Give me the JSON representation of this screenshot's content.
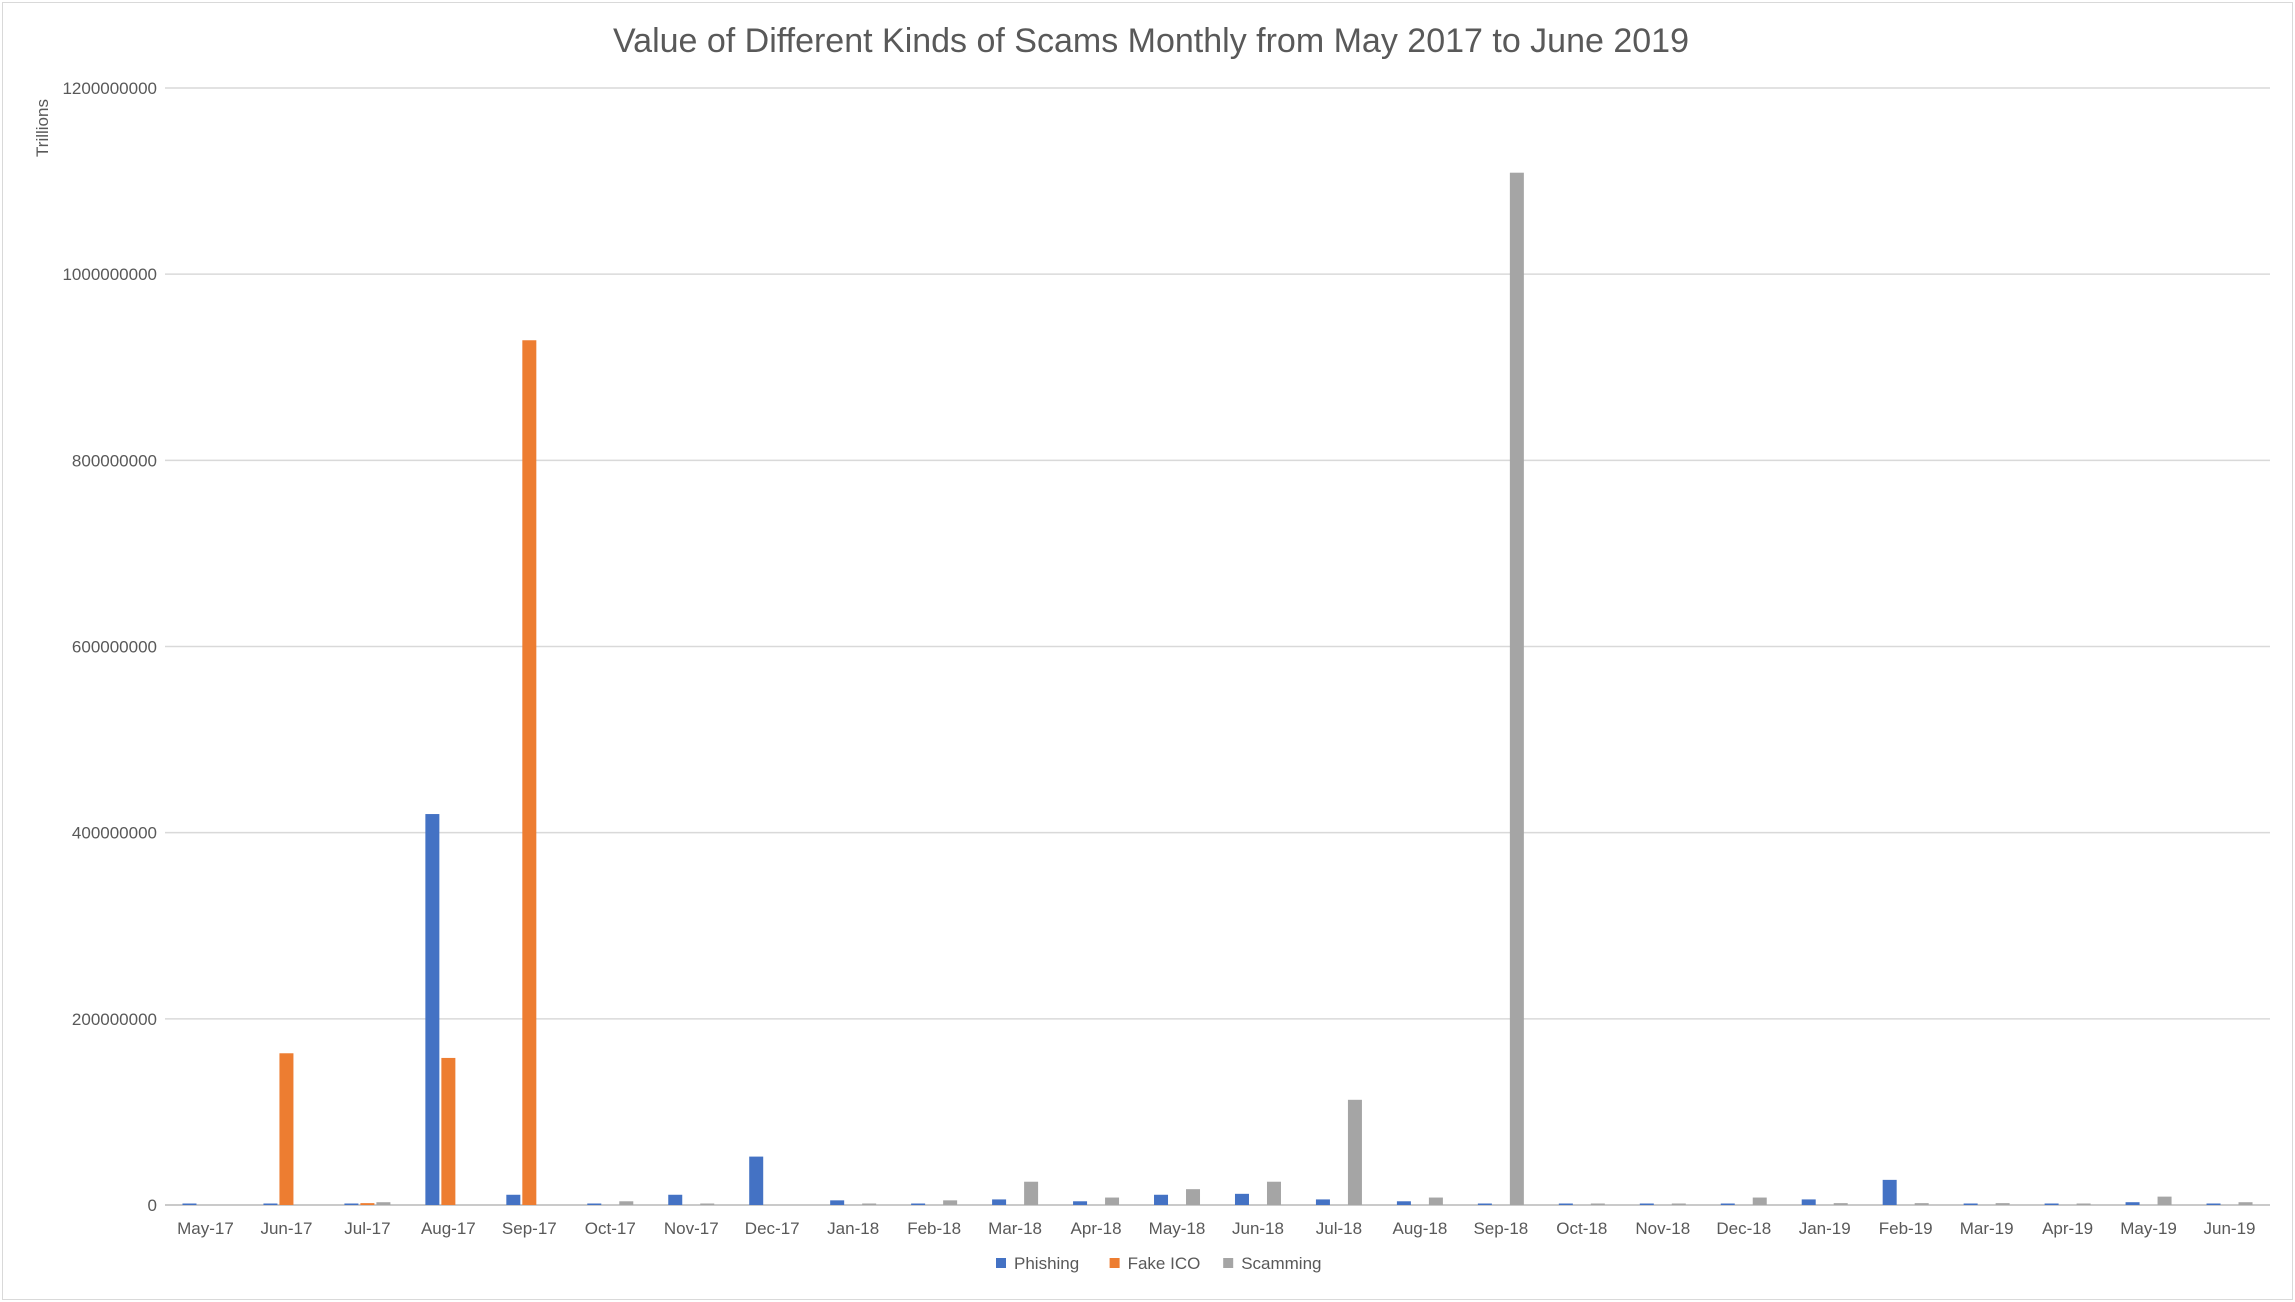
{
  "chart_data": {
    "type": "bar",
    "title": "Value of Different Kinds of Scams Monthly from May 2017 to June 2019",
    "ylabel": "Trillions",
    "xlabel": "",
    "ylim": [
      0,
      1200000000
    ],
    "yticks": [
      0,
      200000000,
      400000000,
      600000000,
      800000000,
      1000000000,
      1200000000
    ],
    "grid": true,
    "legend_position": "bottom",
    "categories": [
      "May-17",
      "Jun-17",
      "Jul-17",
      "Aug-17",
      "Sep-17",
      "Oct-17",
      "Nov-17",
      "Dec-17",
      "Jan-18",
      "Feb-18",
      "Mar-18",
      "Apr-18",
      "May-18",
      "Jun-18",
      "Jul-18",
      "Aug-18",
      "Sep-18",
      "Oct-18",
      "Nov-18",
      "Dec-18",
      "Jan-19",
      "Feb-19",
      "Mar-19",
      "Apr-19",
      "May-19",
      "Jun-19"
    ],
    "series": [
      {
        "name": "Phishing",
        "color": "#4472c4",
        "values": [
          1000000,
          500000,
          1000000,
          420000000,
          11000000,
          1000000,
          11000000,
          52000000,
          5000000,
          1000000,
          6000000,
          4000000,
          11000000,
          12000000,
          6000000,
          4000000,
          1000000,
          1000000,
          1000000,
          1000000,
          6000000,
          27000000,
          1000000,
          1000000,
          3000000,
          1000000
        ]
      },
      {
        "name": "Fake ICO",
        "color": "#ed7d31",
        "values": [
          0,
          163000000,
          2000000,
          158000000,
          929000000,
          0,
          0,
          0,
          0,
          0,
          0,
          0,
          0,
          0,
          0,
          0,
          0,
          0,
          0,
          0,
          0,
          0,
          0,
          0,
          0,
          0
        ]
      },
      {
        "name": "Scamming",
        "color": "#a5a5a5",
        "values": [
          0,
          0,
          3000000,
          0,
          0,
          4000000,
          1000000,
          0,
          1000000,
          5000000,
          25000000,
          8000000,
          17000000,
          25000000,
          113000000,
          8000000,
          1109000000,
          1000000,
          1000000,
          8000000,
          2000000,
          2000000,
          2000000,
          1000000,
          9000000,
          3000000
        ]
      }
    ]
  }
}
